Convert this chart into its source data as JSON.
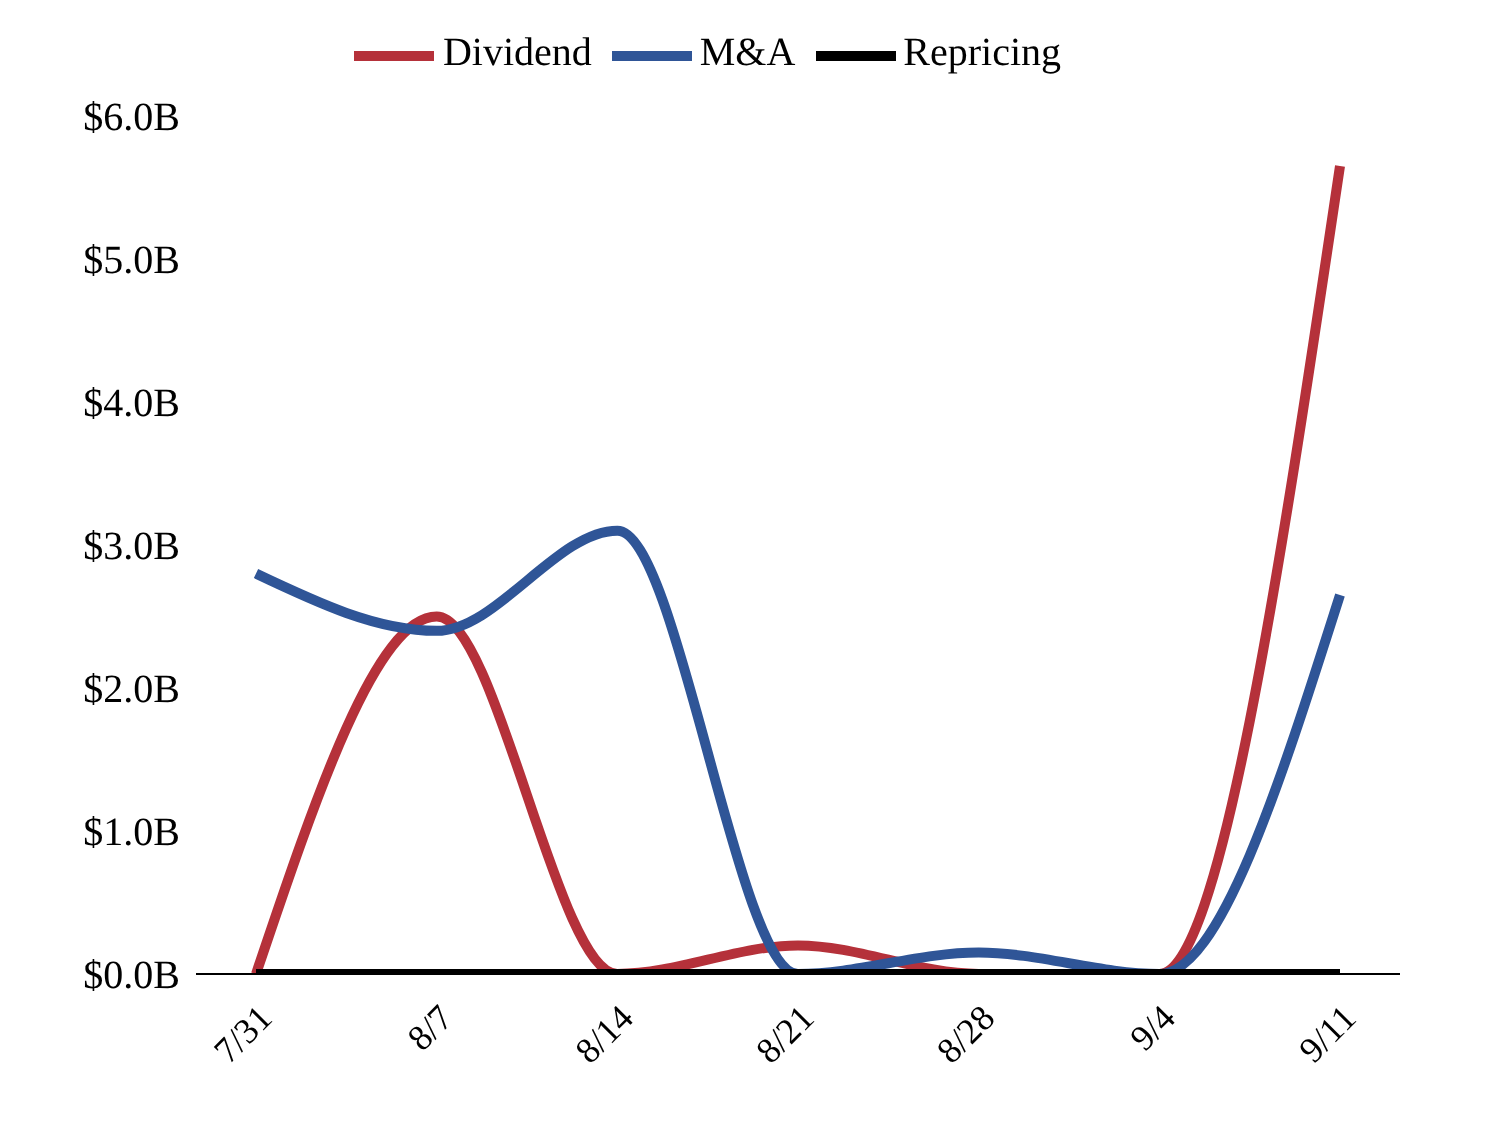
{
  "chart_data": {
    "type": "line",
    "categories": [
      "7/31",
      "8/7",
      "8/14",
      "8/21",
      "8/28",
      "9/4",
      "9/11"
    ],
    "series": [
      {
        "name": "Dividend",
        "color": "#b5313a",
        "values": [
          0,
          2.5,
          0,
          0.2,
          0,
          0,
          5.65
        ]
      },
      {
        "name": "M&A",
        "color": "#2f5597",
        "values": [
          2.8,
          2.4,
          3.1,
          0,
          0.15,
          0,
          2.65
        ]
      },
      {
        "name": "Repricing",
        "color": "#000000",
        "values": [
          0,
          0,
          0,
          0,
          0,
          0,
          0
        ]
      }
    ],
    "ylim": [
      0,
      6
    ],
    "yticks": [
      {
        "value": 0,
        "label": "$0.0B"
      },
      {
        "value": 1,
        "label": "$1.0B"
      },
      {
        "value": 2,
        "label": "$2.0B"
      },
      {
        "value": 3,
        "label": "$3.0B"
      },
      {
        "value": 4,
        "label": "$4.0B"
      },
      {
        "value": 5,
        "label": "$5.0B"
      },
      {
        "value": 6,
        "label": "$6.0B"
      }
    ],
    "grid": false,
    "legend": "top",
    "marker": "none",
    "line_style": "solid"
  }
}
